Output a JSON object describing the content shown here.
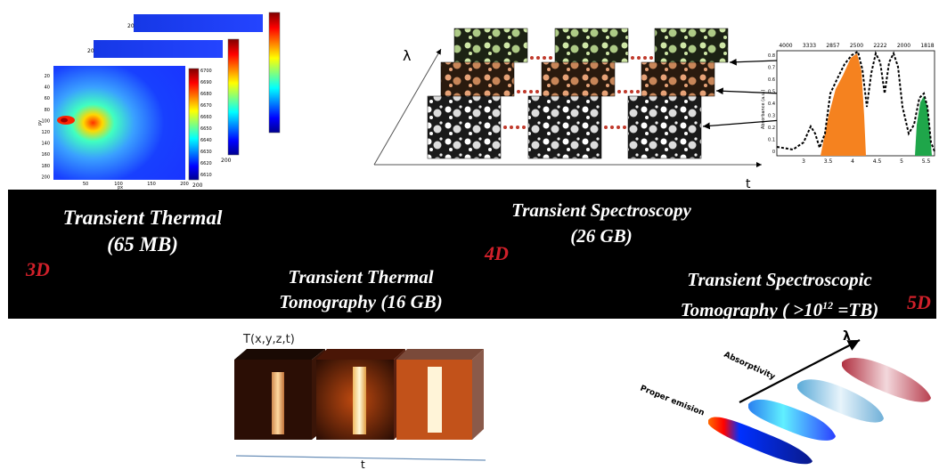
{
  "band": {
    "thermal": {
      "line1": "Transient Thermal",
      "line2": "(65 MB)",
      "dim": "3D"
    },
    "spectroscopy": {
      "line1": "Transient Spectroscopy",
      "line2": "(26 GB)",
      "dim": "4D"
    },
    "tomography": {
      "line1": "Transient Thermal",
      "line2": "Tomography (16 GB)"
    },
    "spectroscopic_tomography": {
      "line1": "Transient Spectroscopic",
      "line2_prefix": "Tomography ( >10",
      "line2_sup": "12",
      "line2_suffix": " =TB)",
      "dim": "5D"
    }
  },
  "heatmap": {
    "yticks": [
      "20",
      "40",
      "60",
      "80",
      "100",
      "120",
      "140",
      "160",
      "180",
      "200"
    ],
    "xticks": [
      "50",
      "100",
      "150",
      "200"
    ],
    "xlabel": "px",
    "ylabel": "py",
    "colorbar_ticks": [
      "6700",
      "6690",
      "6680",
      "6670",
      "6660",
      "6650",
      "6640",
      "6630",
      "6620",
      "6610"
    ],
    "back_tick_left": "20",
    "colorbar_bottom_label": "200"
  },
  "spectro": {
    "lambda": "λ",
    "t": "t",
    "top_axis": [
      "4000",
      "3333",
      "2857",
      "2500",
      "2222",
      "2000",
      "1818"
    ],
    "bottom_axis": [
      "3",
      "3.5",
      "4",
      "4.5",
      "5",
      "5.5"
    ],
    "left_axis": [
      "0",
      "0.1",
      "0.2",
      "0.3",
      "0.4",
      "0.5",
      "0.6",
      "0.7",
      "0.8"
    ],
    "ylabel": "Absorbance (a.u.)"
  },
  "cube": {
    "label": "T(x,y,z,t)",
    "t": "t"
  },
  "emission": {
    "lambda": "λ",
    "absorptivity": "Absorptivity",
    "proper": "Proper emision"
  },
  "colors": {
    "dim_red": "#d0202a",
    "band": "#000000",
    "orange": "#f5821f",
    "green": "#1fa64a"
  }
}
